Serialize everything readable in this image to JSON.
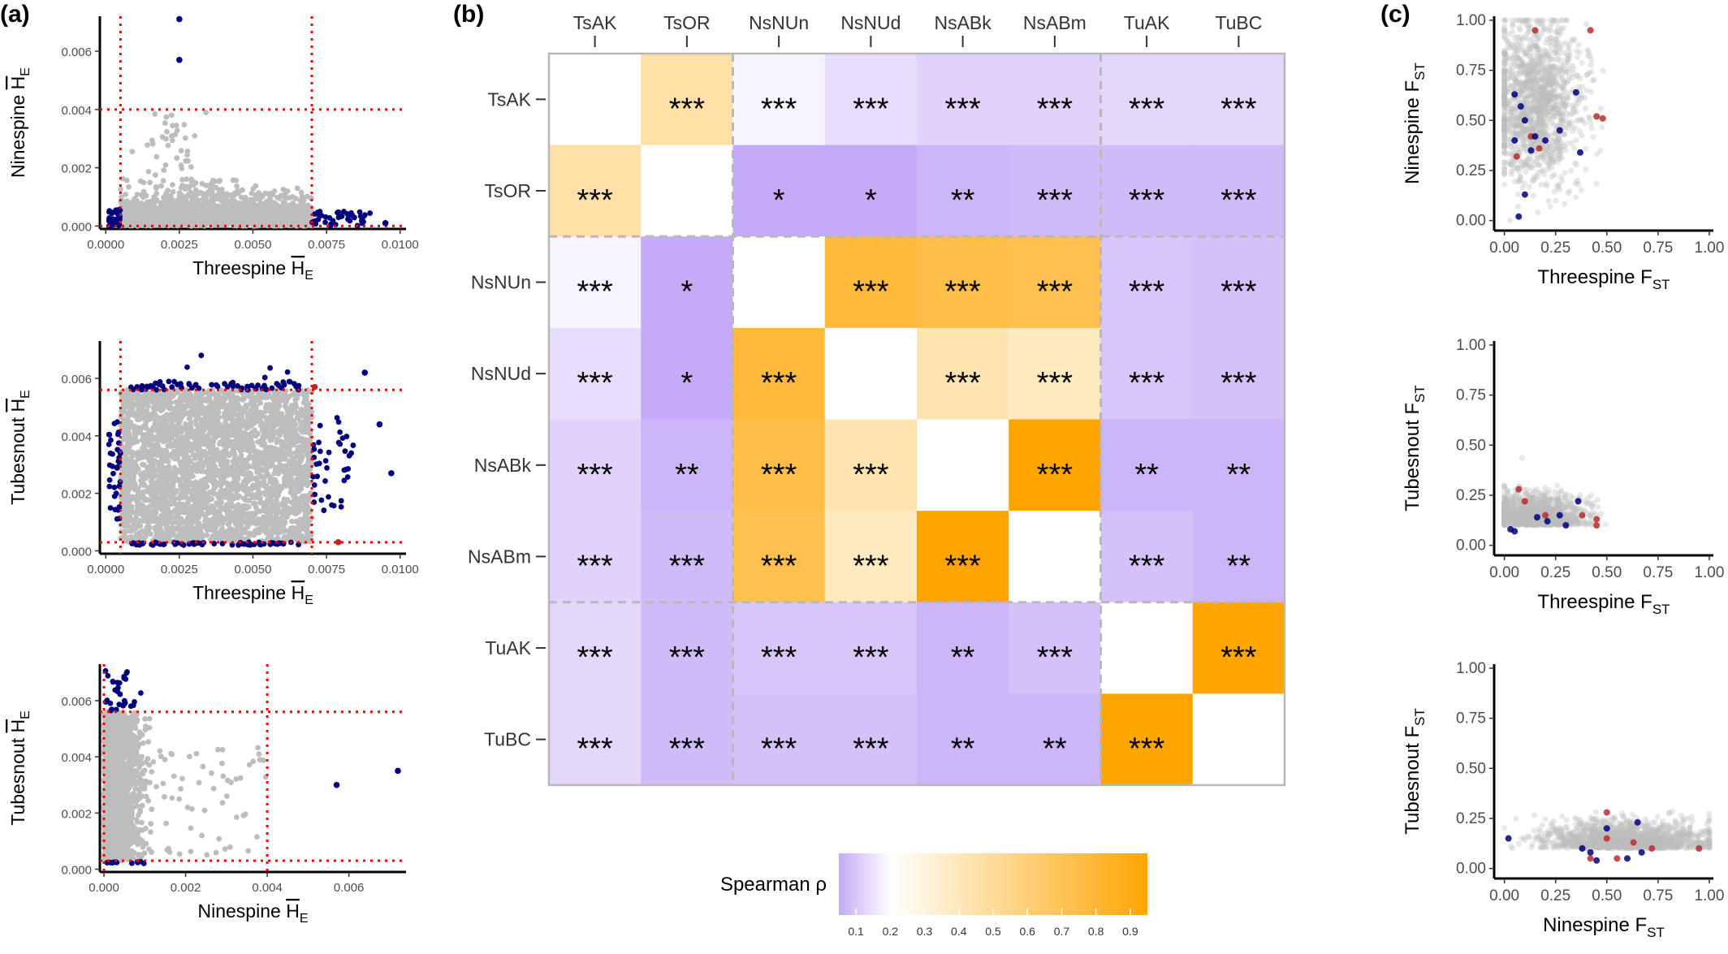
{
  "panel_labels": [
    "(a)",
    "(b)",
    "(c)"
  ],
  "colors": {
    "background_point": "#bdbdbd",
    "outlier_blue": "#00007f",
    "outlier_red": "#bb2a2a",
    "threshold_line": "#ff0000",
    "low": "#c4aaf7",
    "mid": "#ffffff",
    "high": "#ffa500",
    "dashed": "#b8b8b8"
  },
  "chart_data": [
    {
      "id": "a1",
      "type": "scatter",
      "xlabel": "Threespine H̄E",
      "ylabel": "Ninespine H̄E",
      "xlim": [
        -0.0002,
        0.0102
      ],
      "ylim": [
        -0.0001,
        0.0072
      ],
      "xticks": [
        "0.0000",
        "0.0025",
        "0.0050",
        "0.0075",
        "0.0100"
      ],
      "yticks": [
        "0.000",
        "0.002",
        "0.004",
        "0.006"
      ],
      "thresholds_x": [
        0.0005,
        0.007
      ],
      "thresholds_y": [
        0.0,
        0.004
      ],
      "highlighted_points": [
        [
          0.0025,
          0.0071
        ],
        [
          0.0025,
          0.0057
        ],
        [
          0.0095,
          0.0001
        ]
      ]
    },
    {
      "id": "a2",
      "type": "scatter",
      "xlabel": "Threespine H̄E",
      "ylabel": "Tubesnout H̄E",
      "xlim": [
        -0.0002,
        0.0102
      ],
      "ylim": [
        -0.0001,
        0.0073
      ],
      "xticks": [
        "0.0000",
        "0.0025",
        "0.0050",
        "0.0075",
        "0.0100"
      ],
      "yticks": [
        "0.000",
        "0.002",
        "0.004",
        "0.006"
      ],
      "thresholds_x": [
        0.0005,
        0.007
      ],
      "thresholds_y": [
        0.0003,
        0.0056
      ],
      "highlighted_points": [
        [
          0.0097,
          0.0027
        ],
        [
          0.0093,
          0.0044
        ],
        [
          0.0088,
          0.0062
        ]
      ]
    },
    {
      "id": "a3",
      "type": "scatter",
      "xlabel": "Ninespine H̄E",
      "ylabel": "Tubesnout H̄E",
      "xlim": [
        -0.0001,
        0.0074
      ],
      "ylim": [
        -0.0001,
        0.0073
      ],
      "xticks": [
        "0.000",
        "0.002",
        "0.004",
        "0.006"
      ],
      "yticks": [
        "0.000",
        "0.002",
        "0.004",
        "0.006"
      ],
      "thresholds_x": [
        0.0,
        0.004
      ],
      "thresholds_y": [
        0.0003,
        0.0056
      ],
      "highlighted_points": [
        [
          0.0057,
          0.003
        ],
        [
          0.0072,
          0.0035
        ]
      ]
    },
    {
      "id": "b",
      "type": "heatmap",
      "columns": [
        "TsAK",
        "TsOR",
        "NsNUn",
        "NsNUd",
        "NsABk",
        "NsABm",
        "TuAK",
        "TuBC"
      ],
      "rows": [
        "TsAK",
        "TsOR",
        "NsNUn",
        "NsNUd",
        "NsABk",
        "NsABm",
        "TuAK",
        "TuBC"
      ],
      "values": [
        [
          null,
          0.45,
          0.18,
          0.14,
          0.12,
          0.12,
          0.13,
          0.13
        ],
        [
          0.45,
          null,
          0.05,
          0.05,
          0.07,
          0.08,
          0.08,
          0.08
        ],
        [
          0.18,
          0.05,
          null,
          0.75,
          0.72,
          0.7,
          0.1,
          0.09
        ],
        [
          0.14,
          0.05,
          0.75,
          null,
          0.42,
          0.38,
          0.1,
          0.09
        ],
        [
          0.12,
          0.07,
          0.72,
          0.42,
          null,
          0.92,
          0.07,
          0.07
        ],
        [
          0.12,
          0.08,
          0.7,
          0.38,
          0.92,
          null,
          0.09,
          0.07
        ],
        [
          0.13,
          0.08,
          0.1,
          0.1,
          0.07,
          0.09,
          null,
          0.92
        ],
        [
          0.13,
          0.08,
          0.09,
          0.09,
          0.07,
          0.07,
          0.92,
          null
        ]
      ],
      "significance": [
        [
          "",
          "***",
          "***",
          "***",
          "***",
          "***",
          "***",
          "***"
        ],
        [
          "***",
          "",
          "*",
          "*",
          "**",
          "***",
          "***",
          "***"
        ],
        [
          "***",
          "*",
          "",
          "***",
          "***",
          "***",
          "***",
          "***"
        ],
        [
          "***",
          "*",
          "***",
          "",
          "***",
          "***",
          "***",
          "***"
        ],
        [
          "***",
          "**",
          "***",
          "***",
          "",
          "***",
          "**",
          "**"
        ],
        [
          "***",
          "***",
          "***",
          "***",
          "***",
          "",
          "***",
          "**"
        ],
        [
          "***",
          "***",
          "***",
          "***",
          "**",
          "***",
          "",
          "***"
        ],
        [
          "***",
          "***",
          "***",
          "***",
          "**",
          "**",
          "***",
          ""
        ]
      ],
      "groups": [
        [
          0,
          1
        ],
        [
          2,
          5
        ],
        [
          6,
          7
        ]
      ],
      "legend": {
        "title": "Spearman ρ",
        "range": [
          0.05,
          0.95
        ],
        "ticks": [
          "0.1",
          "0.2",
          "0.3",
          "0.4",
          "0.5",
          "0.6",
          "0.7",
          "0.8",
          "0.9"
        ],
        "tick_values": [
          0.1,
          0.2,
          0.3,
          0.4,
          0.5,
          0.6,
          0.7,
          0.8,
          0.9
        ]
      }
    },
    {
      "id": "c1",
      "type": "scatter",
      "xlabel": "Threespine F",
      "xlabel_sub": "ST",
      "ylabel": "Ninespine F",
      "ylabel_sub": "ST",
      "xlim": [
        -0.05,
        1.02
      ],
      "ylim": [
        -0.05,
        1.02
      ],
      "xticks": [
        "0.00",
        "0.25",
        "0.50",
        "0.75",
        "1.00"
      ],
      "yticks": [
        "0.00",
        "0.25",
        "0.50",
        "0.75",
        "1.00"
      ],
      "red_points": [
        [
          0.15,
          0.95
        ],
        [
          0.42,
          0.95
        ],
        [
          0.45,
          0.52
        ],
        [
          0.48,
          0.51
        ],
        [
          0.17,
          0.36
        ],
        [
          0.06,
          0.32
        ],
        [
          0.13,
          0.42
        ]
      ],
      "blue_points": [
        [
          0.05,
          0.63
        ],
        [
          0.35,
          0.64
        ],
        [
          0.08,
          0.57
        ],
        [
          0.1,
          0.5
        ],
        [
          0.05,
          0.4
        ],
        [
          0.15,
          0.42
        ],
        [
          0.27,
          0.45
        ],
        [
          0.2,
          0.4
        ],
        [
          0.37,
          0.34
        ],
        [
          0.1,
          0.13
        ],
        [
          0.07,
          0.02
        ],
        [
          0.13,
          0.35
        ]
      ]
    },
    {
      "id": "c2",
      "type": "scatter",
      "xlabel": "Threespine F",
      "xlabel_sub": "ST",
      "ylabel": "Tubesnout F",
      "ylabel_sub": "ST",
      "xlim": [
        -0.05,
        1.02
      ],
      "ylim": [
        -0.05,
        1.02
      ],
      "xticks": [
        "0.00",
        "0.25",
        "0.50",
        "0.75",
        "1.00"
      ],
      "yticks": [
        "0.00",
        "0.25",
        "0.50",
        "0.75",
        "1.00"
      ],
      "red_points": [
        [
          0.07,
          0.28
        ],
        [
          0.2,
          0.15
        ],
        [
          0.38,
          0.15
        ],
        [
          0.45,
          0.13
        ],
        [
          0.45,
          0.1
        ],
        [
          0.1,
          0.22
        ]
      ],
      "blue_points": [
        [
          0.03,
          0.08
        ],
        [
          0.05,
          0.07
        ],
        [
          0.16,
          0.14
        ],
        [
          0.27,
          0.15
        ],
        [
          0.36,
          0.22
        ],
        [
          0.21,
          0.12
        ],
        [
          0.3,
          0.1
        ]
      ]
    },
    {
      "id": "c3",
      "type": "scatter",
      "xlabel": "Ninespine F",
      "xlabel_sub": "ST",
      "ylabel": "Tubesnout F",
      "ylabel_sub": "ST",
      "xlim": [
        -0.05,
        1.02
      ],
      "ylim": [
        -0.05,
        1.02
      ],
      "xticks": [
        "0.00",
        "0.25",
        "0.50",
        "0.75",
        "1.00"
      ],
      "yticks": [
        "0.00",
        "0.25",
        "0.50",
        "0.75",
        "1.00"
      ],
      "red_points": [
        [
          0.5,
          0.28
        ],
        [
          0.5,
          0.15
        ],
        [
          0.63,
          0.13
        ],
        [
          0.72,
          0.1
        ],
        [
          0.55,
          0.05
        ],
        [
          0.95,
          0.1
        ],
        [
          0.42,
          0.05
        ]
      ],
      "blue_points": [
        [
          0.02,
          0.15
        ],
        [
          0.38,
          0.1
        ],
        [
          0.42,
          0.08
        ],
        [
          0.65,
          0.23
        ],
        [
          0.67,
          0.08
        ],
        [
          0.5,
          0.2
        ],
        [
          0.6,
          0.05
        ],
        [
          0.45,
          0.04
        ]
      ]
    }
  ]
}
